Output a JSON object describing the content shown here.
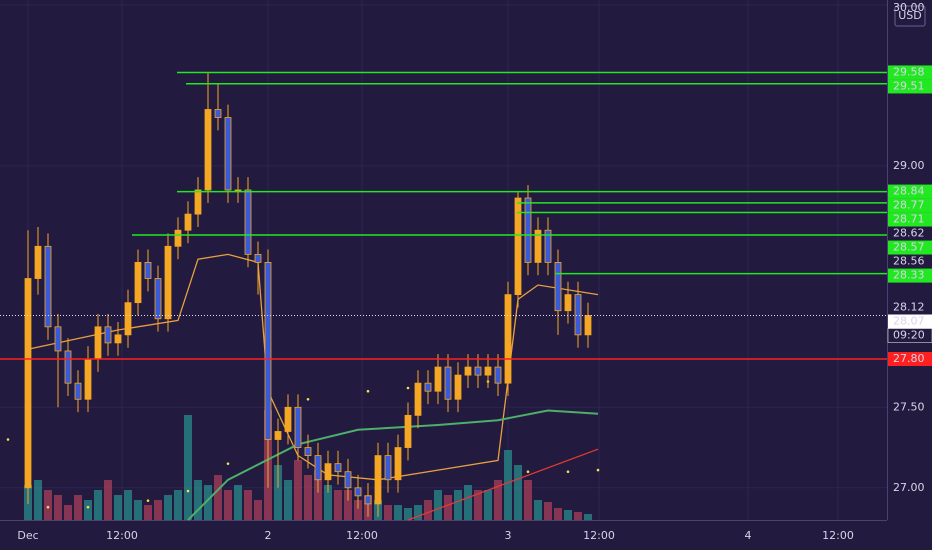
{
  "chart_data": {
    "type": "candlestick",
    "currency": "USD",
    "x": [
      0,
      1,
      2,
      3,
      4,
      5,
      6,
      7,
      8,
      9,
      10,
      11,
      12,
      13,
      14,
      15,
      16,
      17,
      18,
      19,
      20,
      21,
      22,
      23,
      24,
      25,
      26,
      27,
      28,
      29,
      30,
      31,
      32,
      33,
      34,
      35,
      36,
      37,
      38,
      39,
      40,
      41,
      42,
      43,
      44,
      45,
      46,
      47,
      48,
      49,
      50,
      51,
      52,
      53,
      54,
      55,
      56
    ],
    "open": [
      27.0,
      28.3,
      28.5,
      28.0,
      27.85,
      27.65,
      27.55,
      27.8,
      28.0,
      27.9,
      27.95,
      28.15,
      28.4,
      28.3,
      28.05,
      28.5,
      28.6,
      28.7,
      28.85,
      29.35,
      29.3,
      28.85,
      28.85,
      28.45,
      28.4,
      27.3,
      27.35,
      27.5,
      27.25,
      27.2,
      27.05,
      27.15,
      27.1,
      27.0,
      26.95,
      26.9,
      27.2,
      27.05,
      27.25,
      27.45,
      27.65,
      27.6,
      27.75,
      27.55,
      27.7,
      27.75,
      27.7,
      27.75,
      27.65,
      28.2,
      28.8,
      28.4,
      28.6,
      28.4,
      28.1,
      28.2,
      27.95
    ],
    "high": [
      28.6,
      28.62,
      28.58,
      28.08,
      27.93,
      27.73,
      27.88,
      28.08,
      28.08,
      28.03,
      28.23,
      28.48,
      28.48,
      28.38,
      28.58,
      28.68,
      28.78,
      28.93,
      29.58,
      29.51,
      29.38,
      28.93,
      28.93,
      28.53,
      28.48,
      27.43,
      27.58,
      27.58,
      27.33,
      27.28,
      27.23,
      27.23,
      27.18,
      27.08,
      27.03,
      27.28,
      27.28,
      27.33,
      27.53,
      27.73,
      27.73,
      27.83,
      27.83,
      27.78,
      27.83,
      27.83,
      27.83,
      27.83,
      28.28,
      28.84,
      28.88,
      28.68,
      28.68,
      28.48,
      28.28,
      28.28,
      28.15
    ],
    "low": [
      26.9,
      28.2,
      27.92,
      27.5,
      27.57,
      27.47,
      27.47,
      27.72,
      27.82,
      27.82,
      27.87,
      28.07,
      28.22,
      27.97,
      27.97,
      28.42,
      28.52,
      28.62,
      28.77,
      29.22,
      28.77,
      28.77,
      28.37,
      28.2,
      27.0,
      27.0,
      27.27,
      27.17,
      27.12,
      26.97,
      26.97,
      27.02,
      26.92,
      26.87,
      26.82,
      26.82,
      26.97,
      26.97,
      27.17,
      27.37,
      27.52,
      27.52,
      27.47,
      27.47,
      27.62,
      27.62,
      27.62,
      27.57,
      27.57,
      28.12,
      28.32,
      28.32,
      28.32,
      27.95,
      28.02,
      27.87,
      27.87
    ],
    "close": [
      28.3,
      28.5,
      28.0,
      27.85,
      27.65,
      27.55,
      27.8,
      28.0,
      27.9,
      27.95,
      28.15,
      28.4,
      28.3,
      28.05,
      28.5,
      28.6,
      28.7,
      28.85,
      29.35,
      29.3,
      28.85,
      28.85,
      28.45,
      28.4,
      27.3,
      27.35,
      27.5,
      27.25,
      27.2,
      27.05,
      27.15,
      27.1,
      27.0,
      26.95,
      26.9,
      27.2,
      27.05,
      27.25,
      27.45,
      27.65,
      27.6,
      27.75,
      27.55,
      27.7,
      27.75,
      27.7,
      27.75,
      27.65,
      28.2,
      28.8,
      28.4,
      28.6,
      28.4,
      28.1,
      28.2,
      27.95,
      28.07
    ],
    "volume": [
      35,
      40,
      30,
      25,
      15,
      25,
      20,
      30,
      40,
      25,
      30,
      20,
      15,
      20,
      25,
      30,
      105,
      40,
      35,
      45,
      30,
      35,
      30,
      20,
      110,
      55,
      40,
      60,
      45,
      50,
      35,
      30,
      30,
      20,
      25,
      20,
      15,
      15,
      12,
      15,
      20,
      30,
      25,
      30,
      35,
      30,
      30,
      40,
      70,
      55,
      40,
      20,
      18,
      12,
      10,
      8,
      6
    ],
    "up_color": "#f5a623",
    "down_color": "#3b5bd6",
    "volume_up_color": "#2a8c8c",
    "volume_down_color": "#a8405a",
    "xlim": [
      -2.8,
      85.9
    ],
    "ylim": [
      26.8,
      30.03
    ],
    "xticks": [
      {
        "value": 0,
        "label": "Dec"
      },
      {
        "value": 9.4,
        "label": "12:00"
      },
      {
        "value": 24,
        "label": "2"
      },
      {
        "value": 33.4,
        "label": "12:00"
      },
      {
        "value": 48,
        "label": "3"
      },
      {
        "value": 57.1,
        "label": "12:00"
      },
      {
        "value": 72,
        "label": "4"
      },
      {
        "value": 81,
        "label": "12:00"
      }
    ],
    "yticks": [
      {
        "value": 30,
        "label": "30.00"
      },
      {
        "value": 29,
        "label": "29.00"
      },
      {
        "value": 27.5,
        "label": "27.50"
      },
      {
        "value": 27,
        "label": "27.00"
      }
    ],
    "grid": true,
    "level_color": "#22e822",
    "levels": [
      {
        "value": 29.58,
        "label": "29.58"
      },
      {
        "value": 29.51,
        "label": "29.51"
      },
      {
        "value": 28.84,
        "label": "28.84"
      },
      {
        "value": 28.77,
        "label": "28.77"
      },
      {
        "value": 28.71,
        "label": "28.71"
      },
      {
        "value": 28.57,
        "label": "28.57"
      },
      {
        "value": 28.33,
        "label": "28.33"
      }
    ],
    "marker_labels": [
      {
        "value": 28.62,
        "label": "28.62"
      },
      {
        "value": 28.56,
        "label": "28.56"
      },
      {
        "value": 28.12,
        "label": "28.12"
      }
    ],
    "last_price": {
      "value": 28.07,
      "label": "28.07",
      "countdown": "09:20"
    },
    "alert": {
      "value": 27.8,
      "label": "27.80",
      "color": "#ff2020"
    },
    "overlays": [
      {
        "color": "#e8a040",
        "style": "solid",
        "x": [
          0,
          9,
          15,
          17,
          20,
          23,
          24,
          27,
          30,
          35,
          41,
          47,
          49,
          51,
          57
        ],
        "values": [
          27.86,
          27.98,
          28.04,
          28.42,
          28.45,
          28.4,
          27.6,
          27.2,
          27.08,
          27.05,
          27.11,
          27.17,
          28.17,
          28.26,
          28.2
        ]
      },
      {
        "color": "#4caf6a",
        "style": "solid",
        "x": [
          16,
          20,
          27,
          33,
          41,
          47,
          52,
          57
        ],
        "values": [
          26.8,
          27.05,
          27.27,
          27.36,
          27.39,
          27.42,
          27.48,
          27.46
        ]
      },
      {
        "color": "#e53935",
        "style": "solid",
        "x": [
          38,
          57
        ],
        "values": [
          26.8,
          27.24
        ]
      },
      {
        "color": "#f2e24a",
        "style": "dotted",
        "x": [
          -2,
          2,
          6,
          12,
          16,
          20,
          24,
          28,
          34,
          38,
          42,
          46,
          50,
          54,
          57
        ],
        "values": [
          27.3,
          26.88,
          26.88,
          26.92,
          26.98,
          27.15,
          27.4,
          27.55,
          27.6,
          27.62,
          27.64,
          27.66,
          27.1,
          27.1,
          27.11
        ]
      }
    ]
  }
}
